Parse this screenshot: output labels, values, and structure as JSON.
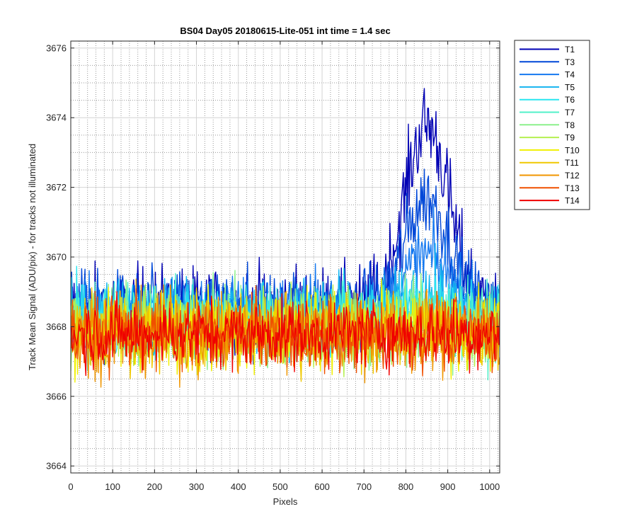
{
  "chart_data": {
    "type": "line",
    "title": "BS04 Day05 20180615-Lite-051 int time = 1.4 sec",
    "xlabel": "Pixels",
    "ylabel": "Track Mean Signal (ADU/pix) - for tracks not illuminated",
    "xlim": [
      0,
      1024
    ],
    "ylim": [
      3663.8,
      3676.2
    ],
    "xticks": [
      0,
      100,
      200,
      300,
      400,
      500,
      600,
      700,
      800,
      900,
      1000
    ],
    "yticks": [
      3664,
      3666,
      3668,
      3670,
      3672,
      3674,
      3676
    ],
    "grid": "major solid, minor dotted",
    "legend_position": "outside-right-top",
    "series": [
      {
        "name": "T1",
        "color": "#0000b4",
        "baseline": 3668.5,
        "peak": 5.3,
        "noise": 0.95
      },
      {
        "name": "T3",
        "color": "#0048d8",
        "baseline": 3668.5,
        "peak": 3.2,
        "noise": 0.85
      },
      {
        "name": "T4",
        "color": "#1478f0",
        "baseline": 3668.4,
        "peak": 1.6,
        "noise": 0.85
      },
      {
        "name": "T5",
        "color": "#14b4f0",
        "baseline": 3668.3,
        "peak": 0.6,
        "noise": 0.85
      },
      {
        "name": "T6",
        "color": "#28e6f0",
        "baseline": 3668.2,
        "peak": 0.4,
        "noise": 0.85
      },
      {
        "name": "T7",
        "color": "#50f0c8",
        "baseline": 3668.1,
        "peak": 0.2,
        "noise": 0.85
      },
      {
        "name": "T8",
        "color": "#8cf08c",
        "baseline": 3668.0,
        "peak": 0.1,
        "noise": 0.85
      },
      {
        "name": "T9",
        "color": "#b4f050",
        "baseline": 3667.95,
        "peak": 0.0,
        "noise": 0.85
      },
      {
        "name": "T10",
        "color": "#f0f000",
        "baseline": 3667.9,
        "peak": 0.0,
        "noise": 0.85
      },
      {
        "name": "T11",
        "color": "#f0c800",
        "baseline": 3667.85,
        "peak": 0.0,
        "noise": 0.85
      },
      {
        "name": "T12",
        "color": "#f09600",
        "baseline": 3667.8,
        "peak": 0.0,
        "noise": 0.9
      },
      {
        "name": "T13",
        "color": "#f05000",
        "baseline": 3667.8,
        "peak": 0.0,
        "noise": 0.8
      },
      {
        "name": "T14",
        "color": "#f00000",
        "baseline": 3667.8,
        "peak": 0.0,
        "noise": 0.75
      }
    ],
    "peak_center": 850,
    "peak_width": 75
  }
}
